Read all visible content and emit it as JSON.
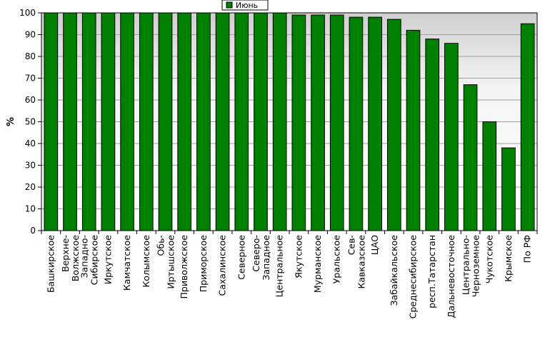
{
  "chart_data": {
    "type": "bar",
    "ylabel": "%",
    "ylim": [
      0,
      100
    ],
    "yticks": [
      0,
      10,
      20,
      30,
      40,
      50,
      60,
      70,
      80,
      90,
      100
    ],
    "grid": true,
    "legend_position": "top-center",
    "categories": [
      "Башкирское",
      "Верхне-Волжское",
      "Западно-Сибирское",
      "Иркутское",
      "Камчатское",
      "Колымское",
      "Обь-Иртышское",
      "Приволжское",
      "Приморское",
      "Сахалинское",
      "Северное",
      "Северо-Западное",
      "Центральное",
      "Якутское",
      "Мурманское",
      "Уральское",
      "Сев-Кавказское",
      "ЦАО",
      "Забайкальское",
      "Среднесибирское",
      "респ.Татарстан",
      "Дальневосточное",
      "Центрально-Черноземное",
      "Чукотское",
      "Крымское",
      "По РФ"
    ],
    "series": [
      {
        "name": "Июнь",
        "color": "#008000",
        "values": [
          100,
          100,
          100,
          100,
          100,
          100,
          100,
          100,
          100,
          100,
          100,
          100,
          100,
          99,
          99,
          99,
          98,
          98,
          97,
          92,
          88,
          86,
          67,
          50,
          38,
          95
        ]
      }
    ]
  },
  "colors": {
    "bar": "#008000",
    "plot_background_bottom": "#ffffff",
    "plot_background_top": "#d0d0d0",
    "gridline": "#a0a0a0"
  }
}
